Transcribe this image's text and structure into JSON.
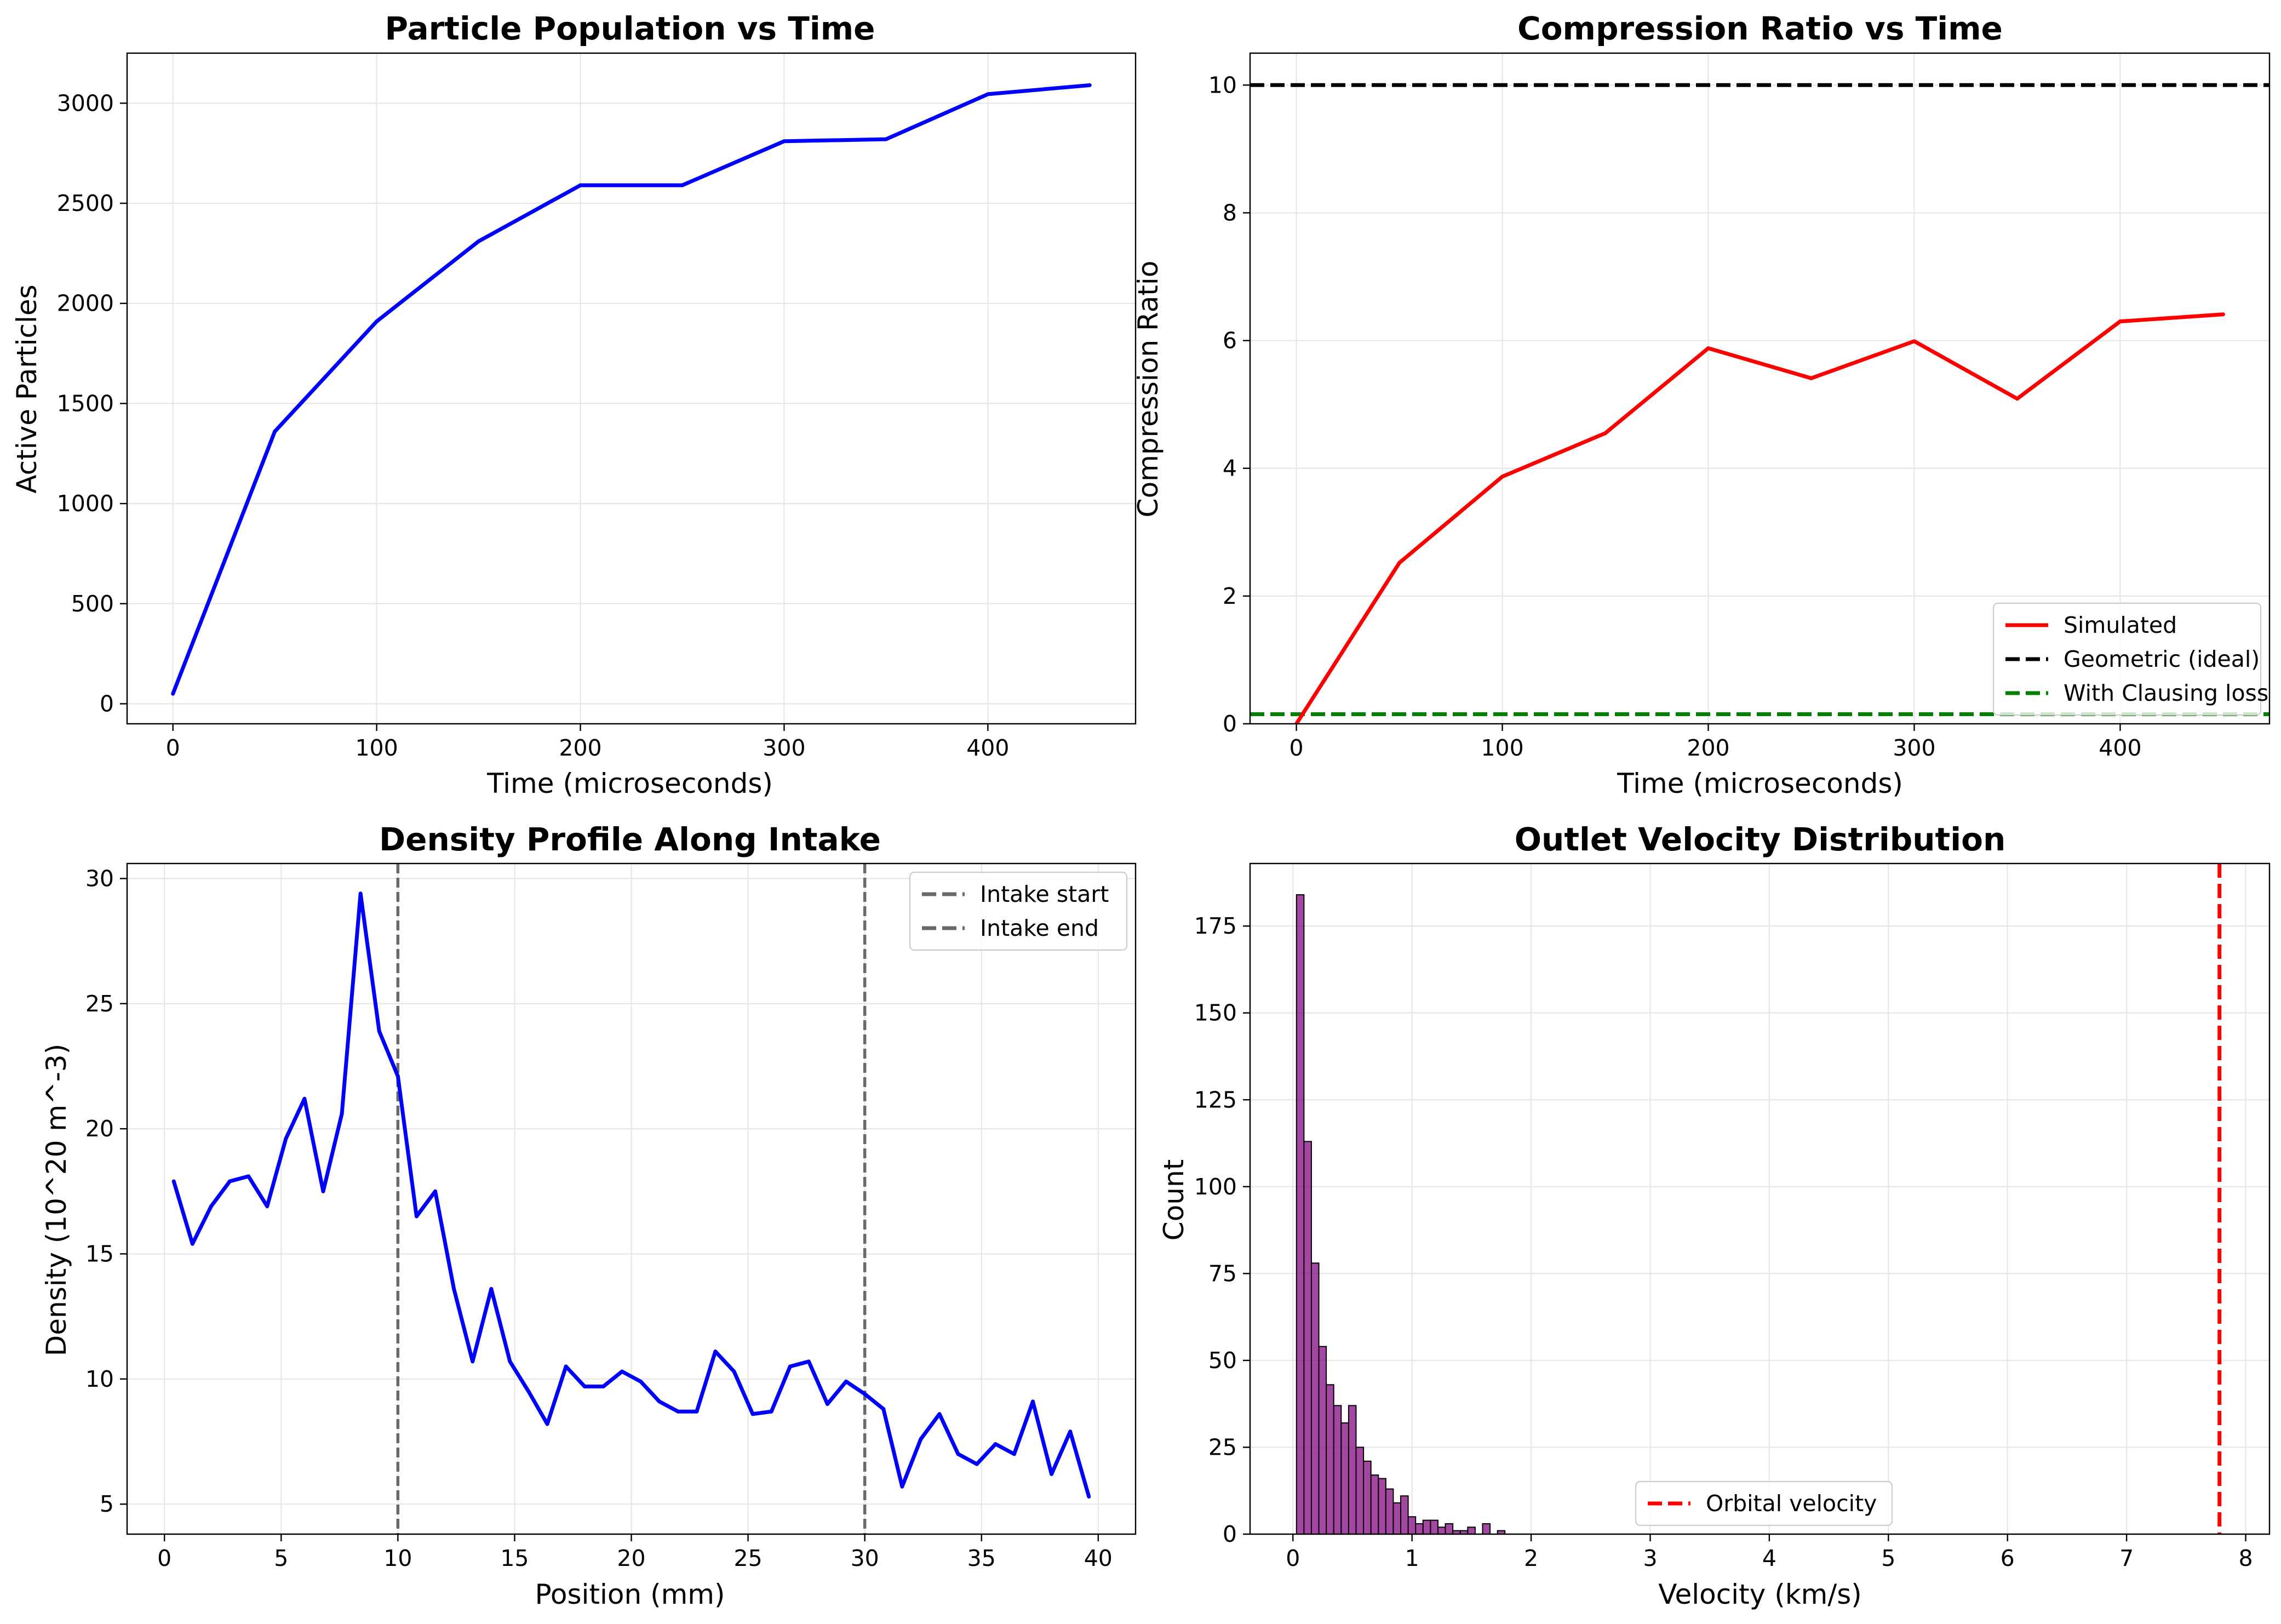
{
  "chart_data": [
    {
      "id": "population",
      "type": "line",
      "title": "Particle Population vs Time",
      "xlabel": "Time (microseconds)",
      "ylabel": "Active Particles",
      "xlim": [
        -22.5,
        472.5
      ],
      "ylim": [
        -100,
        3250
      ],
      "xticks": [
        0,
        100,
        200,
        300,
        400
      ],
      "yticks": [
        0,
        500,
        1000,
        1500,
        2000,
        2500,
        3000
      ],
      "grid": true,
      "series": [
        {
          "name": "Active Particles",
          "color": "#0000ff",
          "style": "solid",
          "x": [
            0,
            50,
            100,
            150,
            200,
            250,
            300,
            350,
            400,
            450
          ],
          "y": [
            50,
            1360,
            1910,
            2310,
            2590,
            2590,
            2810,
            2820,
            3045,
            3090
          ]
        }
      ]
    },
    {
      "id": "compression",
      "type": "line",
      "title": "Compression Ratio vs Time",
      "xlabel": "Time (microseconds)",
      "ylabel": "Compression Ratio",
      "xlim": [
        -22.5,
        472.5
      ],
      "ylim": [
        0,
        10.5
      ],
      "xticks": [
        0,
        100,
        200,
        300,
        400
      ],
      "yticks": [
        0,
        2,
        4,
        6,
        8,
        10
      ],
      "grid": true,
      "legend_position": "lower-right",
      "series": [
        {
          "name": "Simulated",
          "color": "#ff0000",
          "style": "solid",
          "x": [
            0,
            50,
            100,
            150,
            200,
            250,
            300,
            350,
            400,
            450
          ],
          "y": [
            0,
            2.52,
            3.87,
            4.55,
            5.88,
            5.41,
            5.99,
            5.09,
            6.3,
            6.41
          ]
        }
      ],
      "hlines": [
        {
          "name": "Geometric (ideal)",
          "y": 10,
          "color": "#000000",
          "style": "dashed"
        },
        {
          "name": "With Clausing loss",
          "y": 0.15,
          "color": "#008000",
          "style": "dashed"
        }
      ]
    },
    {
      "id": "density",
      "type": "line",
      "title": "Density Profile Along Intake",
      "xlabel": "Position (mm)",
      "ylabel": "Density (10^20 m^-3)",
      "xlim": [
        -1.6,
        41.6
      ],
      "ylim": [
        3.8,
        30.6
      ],
      "xticks": [
        0,
        5,
        10,
        15,
        20,
        25,
        30,
        35,
        40
      ],
      "yticks": [
        5,
        10,
        15,
        20,
        25,
        30
      ],
      "grid": true,
      "legend_position": "upper-right",
      "series": [
        {
          "name": "Density",
          "color": "#0000ff",
          "style": "solid",
          "x": [
            0.4,
            1.2,
            2.0,
            2.8,
            3.6,
            4.4,
            5.2,
            6.0,
            6.8,
            7.6,
            8.4,
            9.2,
            10.0,
            10.8,
            11.6,
            12.4,
            13.2,
            14.0,
            14.8,
            15.6,
            16.4,
            17.2,
            18.0,
            18.8,
            19.6,
            20.4,
            21.2,
            22.0,
            22.8,
            23.6,
            24.4,
            25.2,
            26.0,
            26.8,
            27.6,
            28.4,
            29.2,
            30.0,
            30.8,
            31.6,
            32.4,
            33.2,
            34.0,
            34.8,
            35.6,
            36.4,
            37.2,
            38.0,
            38.8,
            39.6
          ],
          "y": [
            17.9,
            15.4,
            16.9,
            17.9,
            18.1,
            16.9,
            19.6,
            21.2,
            17.5,
            20.6,
            29.4,
            23.9,
            22.1,
            16.5,
            17.5,
            13.6,
            10.7,
            13.6,
            10.7,
            9.5,
            8.2,
            10.5,
            9.7,
            9.7,
            10.3,
            9.9,
            9.1,
            8.7,
            8.7,
            11.1,
            10.3,
            8.6,
            8.7,
            10.5,
            10.7,
            9.0,
            9.9,
            9.4,
            8.8,
            5.7,
            7.6,
            8.6,
            7.0,
            6.6,
            7.4,
            7.0,
            9.1,
            6.2,
            7.9,
            5.3
          ]
        }
      ],
      "vlines": [
        {
          "name": "Intake start",
          "x": 10,
          "color": "#696969",
          "style": "dashed"
        },
        {
          "name": "Intake end",
          "x": 30,
          "color": "#696969",
          "style": "dashed"
        }
      ]
    },
    {
      "id": "velocity",
      "type": "bar",
      "title": "Outlet Velocity Distribution",
      "xlabel": "Velocity (km/s)",
      "ylabel": "Count",
      "xlim": [
        -0.36,
        8.2
      ],
      "ylim": [
        0,
        193
      ],
      "xticks": [
        0,
        1,
        2,
        3,
        4,
        5,
        6,
        7,
        8
      ],
      "yticks": [
        0,
        25,
        50,
        75,
        100,
        125,
        150,
        175
      ],
      "grid": true,
      "legend_position": "lower-center",
      "bin_start": 0.03,
      "bin_width": 0.0625,
      "bar_color": "#800080",
      "counts": [
        184,
        113,
        78,
        54,
        43,
        37,
        32,
        37,
        25,
        21,
        17,
        16,
        13,
        9,
        11,
        5,
        3,
        4,
        4,
        2,
        3,
        1,
        1,
        2,
        0,
        3,
        0,
        1
      ],
      "vlines": [
        {
          "name": "Orbital velocity",
          "x": 7.78,
          "color": "#ff0000",
          "style": "dashed"
        }
      ]
    }
  ]
}
